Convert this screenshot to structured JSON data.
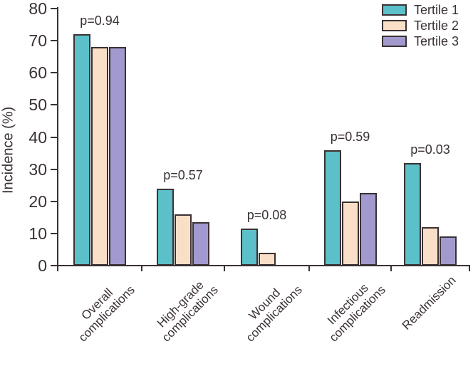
{
  "chart_data": {
    "type": "bar",
    "title": "",
    "ylabel": "Incidence (%)",
    "xlabel": "",
    "ylim": [
      0,
      80
    ],
    "yticks": [
      0,
      10,
      20,
      30,
      40,
      50,
      60,
      70,
      80
    ],
    "grid": false,
    "legend_position": "top-right",
    "categories": [
      "Overall\ncomplications",
      "High-grade\ncomplications",
      "Wound\ncomplications",
      "Infectious\ncomplications",
      "Readmission"
    ],
    "series": [
      {
        "name": "Tertile 1",
        "color": "#5bc0c9",
        "values": [
          72,
          24,
          11.5,
          36,
          32
        ]
      },
      {
        "name": "Tertile 2",
        "color": "#fadfc8",
        "values": [
          68,
          16,
          4,
          20,
          12
        ]
      },
      {
        "name": "Tertile 3",
        "color": "#a29ace",
        "values": [
          68,
          13.5,
          0,
          22.5,
          9
        ]
      }
    ],
    "p_value_annotations": [
      "p=0.94",
      "p=0.57",
      "p=0.08",
      "p=0.59",
      "p=0.03"
    ],
    "axis_color": "#3a3133",
    "text_color": "#3a3132",
    "bar_border_color": "#3a3133"
  }
}
